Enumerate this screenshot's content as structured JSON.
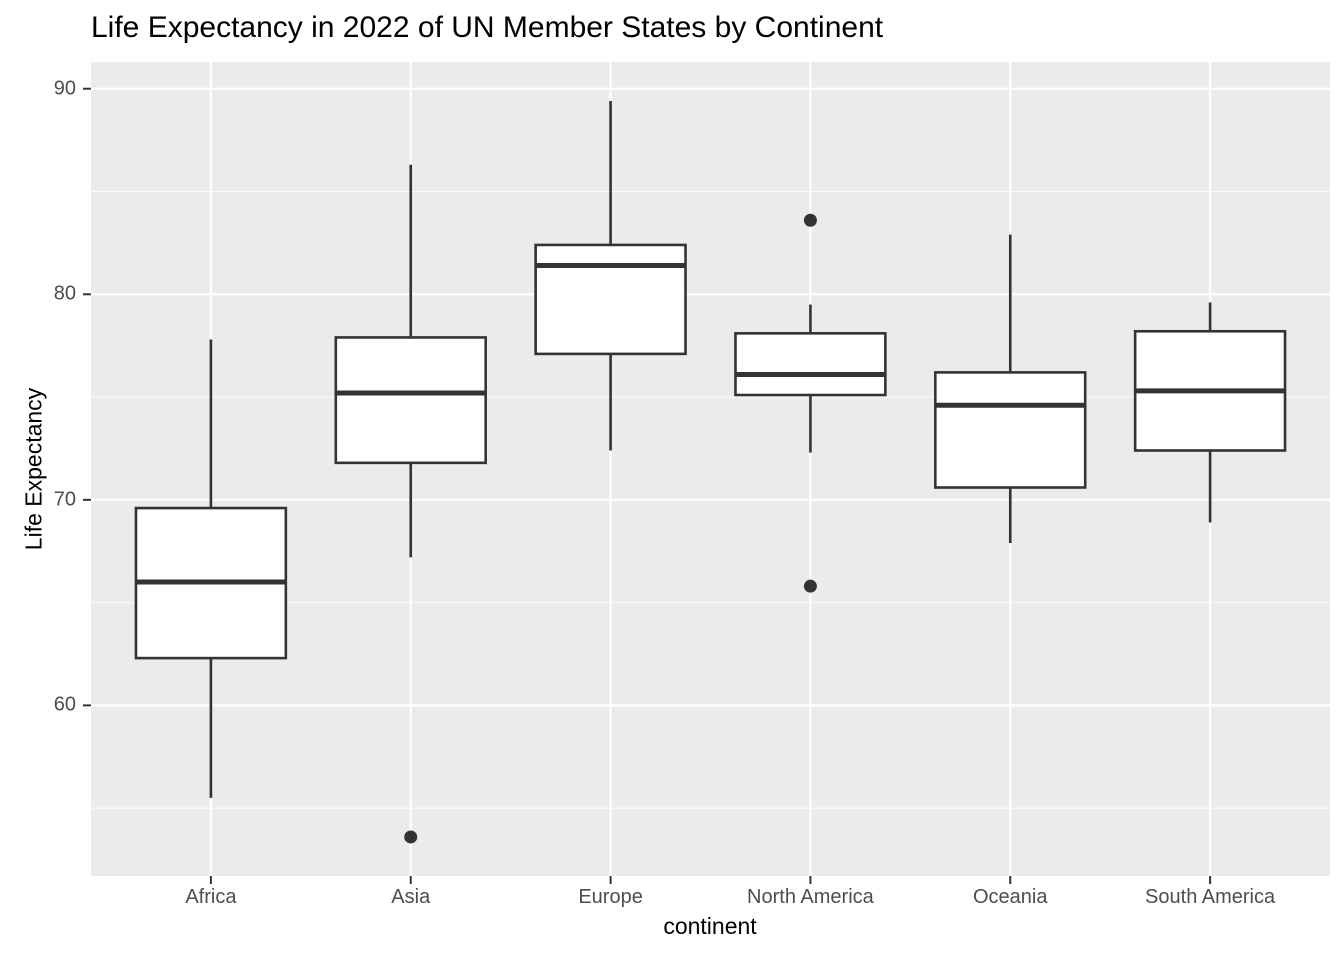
{
  "chart_data": {
    "type": "boxplot",
    "title": "Life Expectancy in 2022 of UN Member States by Continent",
    "xlabel": "continent",
    "ylabel": "Life Expectancy",
    "categories": [
      "Africa",
      "Asia",
      "Europe",
      "North America",
      "Oceania",
      "South America"
    ],
    "series": [
      {
        "category": "Africa",
        "whisker_low": 55.5,
        "q1": 62.3,
        "median": 66.0,
        "q3": 69.6,
        "whisker_high": 77.8,
        "outliers": []
      },
      {
        "category": "Asia",
        "whisker_low": 67.2,
        "q1": 71.8,
        "median": 75.2,
        "q3": 77.9,
        "whisker_high": 86.3,
        "outliers": [
          53.6
        ]
      },
      {
        "category": "Europe",
        "whisker_low": 72.4,
        "q1": 77.1,
        "median": 81.4,
        "q3": 82.4,
        "whisker_high": 89.4,
        "outliers": []
      },
      {
        "category": "North America",
        "whisker_low": 72.3,
        "q1": 75.1,
        "median": 76.1,
        "q3": 78.1,
        "whisker_high": 79.5,
        "outliers": [
          83.6,
          65.8
        ]
      },
      {
        "category": "Oceania",
        "whisker_low": 67.9,
        "q1": 70.6,
        "median": 74.6,
        "q3": 76.2,
        "whisker_high": 82.9,
        "outliers": []
      },
      {
        "category": "South America",
        "whisker_low": 68.9,
        "q1": 72.4,
        "median": 75.3,
        "q3": 78.2,
        "whisker_high": 79.6,
        "outliers": []
      }
    ],
    "y_axis": {
      "major_ticks": [
        60,
        70,
        80,
        90
      ],
      "minor_gridlines": [
        55,
        65,
        75,
        85
      ],
      "range": [
        51.7,
        91.3
      ]
    },
    "legend": "none",
    "grid": "on",
    "style": {
      "panel_bg": "#EBEBEB",
      "grid_major_color": "#FFFFFF",
      "grid_minor_color": "#F9F9F9",
      "box_fill": "#FFFFFF",
      "box_stroke": "#333333",
      "tick_color": "#333333",
      "tick_label_color": "#4D4D4D",
      "title_color": "#000000"
    }
  }
}
